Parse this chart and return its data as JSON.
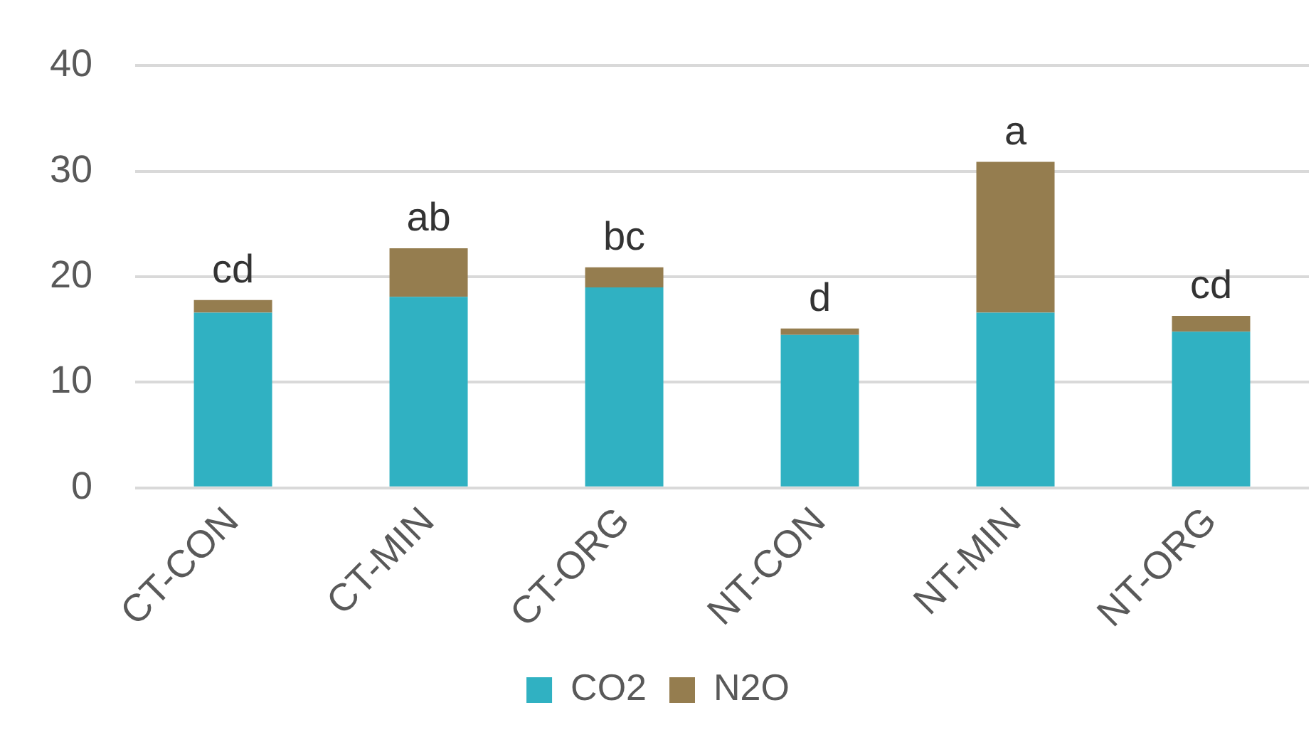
{
  "chart_data": {
    "type": "bar",
    "stacked": true,
    "categories": [
      "CT-CON",
      "CT-MIN",
      "CT-ORG",
      "NT-CON",
      "NT-MIN",
      "NT-ORG"
    ],
    "series": [
      {
        "name": "CO2",
        "color": "#30b1c2",
        "values": [
          16.6,
          18.1,
          19.0,
          14.5,
          16.6,
          14.8
        ]
      },
      {
        "name": "N2O",
        "color": "#957d4f",
        "values": [
          1.2,
          4.6,
          1.9,
          0.6,
          14.3,
          1.5
        ]
      }
    ],
    "ylim": [
      0,
      40
    ],
    "yticks": [
      0,
      10,
      20,
      30,
      40
    ],
    "grid": "y",
    "legend": "bottom",
    "annotations": [
      {
        "text": "cd",
        "x": "CT-CON",
        "y": 17.8
      },
      {
        "text": "ab",
        "x": "CT-MIN",
        "y": 22.7
      },
      {
        "text": "bc",
        "x": "CT-ORG",
        "y": 20.9
      },
      {
        "text": "d",
        "x": "NT-CON",
        "y": 15.1
      },
      {
        "text": "a",
        "x": "NT-MIN",
        "y": 30.9
      },
      {
        "text": "cd",
        "x": "NT-ORG",
        "y": 16.3
      }
    ]
  }
}
